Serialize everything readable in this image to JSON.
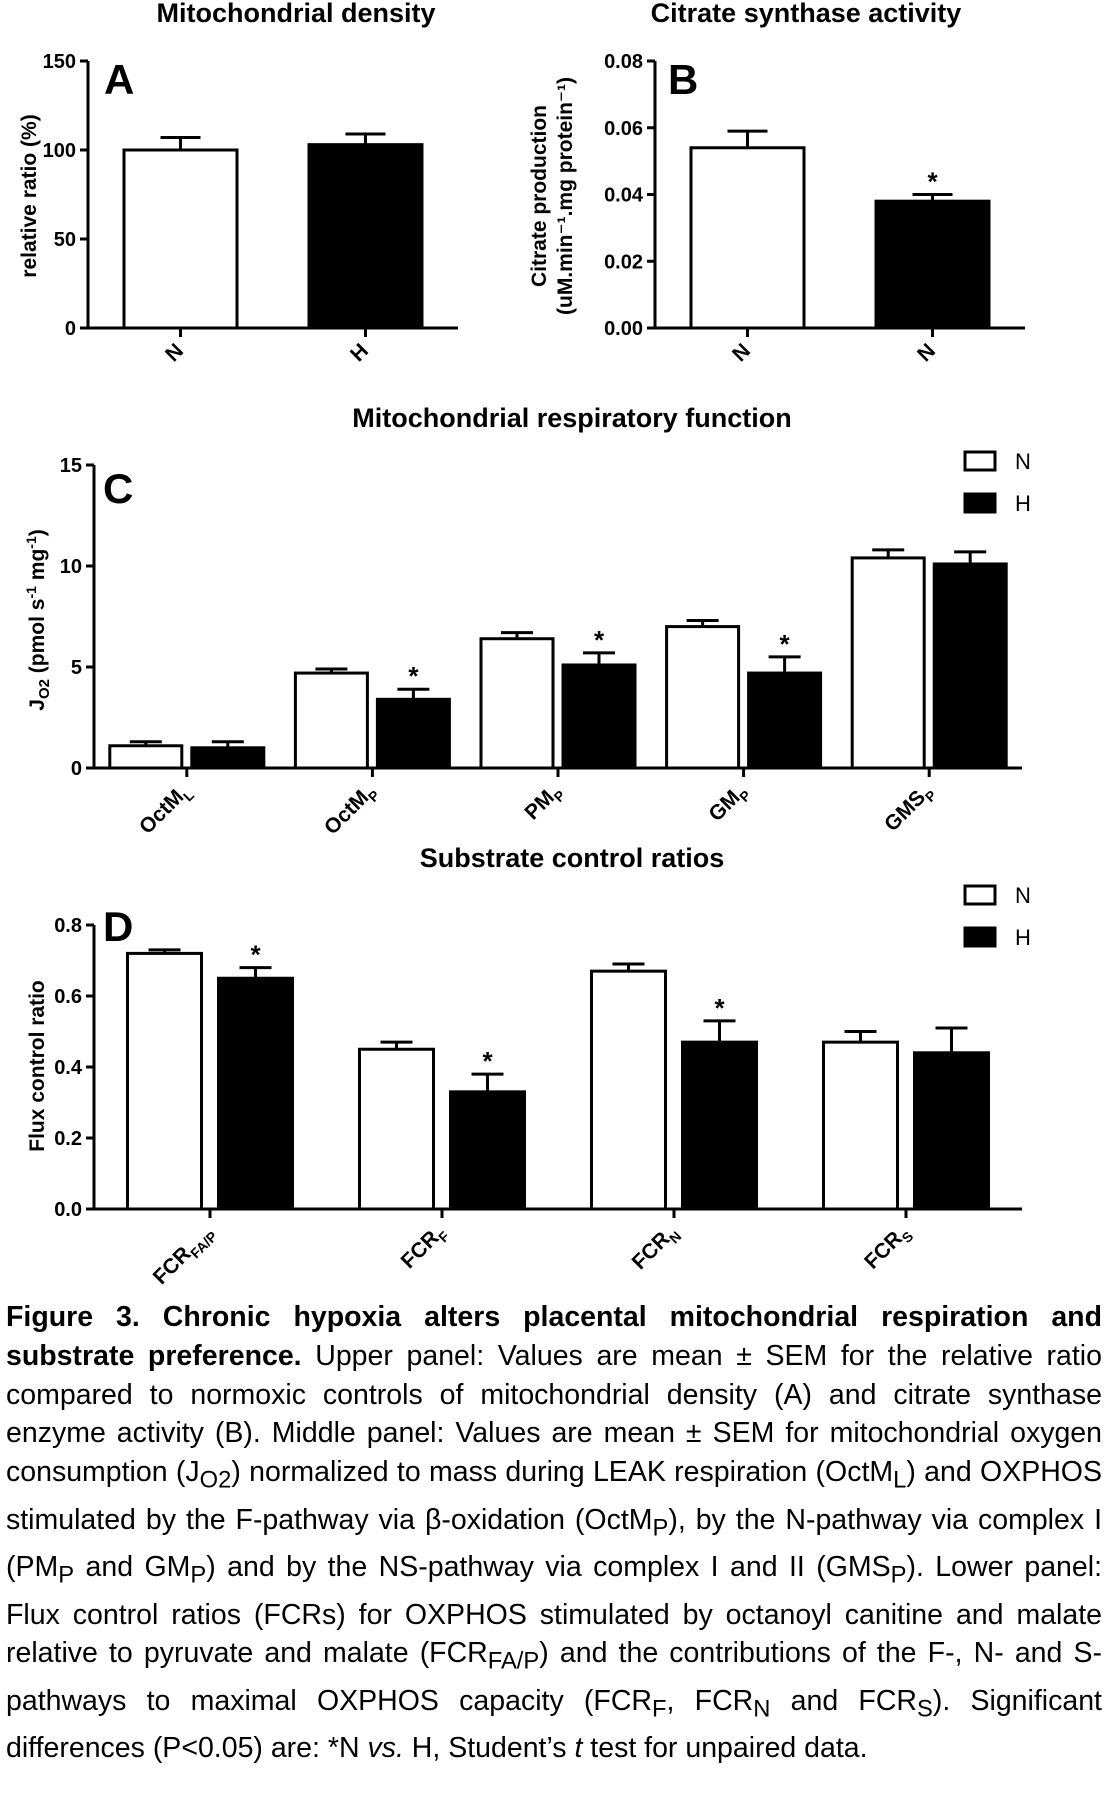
{
  "chart_data": [
    {
      "id": "A",
      "type": "bar",
      "title": "Mitochondrial density",
      "panel_label": "A",
      "ylabel": "relative ratio (%)",
      "ylim": [
        0,
        150
      ],
      "yticks": [
        0,
        50,
        100,
        150
      ],
      "categories": [
        "N",
        "H"
      ],
      "values": [
        100,
        103
      ],
      "errors": [
        7,
        6
      ],
      "fills": [
        "#ffffff",
        "#000000"
      ],
      "stars": [
        "",
        ""
      ]
    },
    {
      "id": "B",
      "type": "bar",
      "title": "Citrate synthase activity",
      "panel_label": "B",
      "ylabel": "Citrate production",
      "ylabel2": "(uM.min⁻¹.mg protein⁻¹)",
      "ylim": [
        0,
        0.08
      ],
      "yticks": [
        "0.00",
        "0.02",
        "0.04",
        "0.06",
        "0.08"
      ],
      "categories": [
        "N",
        "N"
      ],
      "values": [
        0.054,
        0.038
      ],
      "errors": [
        0.005,
        0.002
      ],
      "fills": [
        "#ffffff",
        "#000000"
      ],
      "stars": [
        "",
        "*"
      ]
    },
    {
      "id": "C",
      "type": "bar",
      "title": "Mitochondrial respiratory function",
      "panel_label": "C",
      "ylabel": "J",
      "ylabel_sub": "O2",
      "ylabel_rest": " (pmol s",
      "ylabel_sup": "-1",
      "ylabel_rest2": " mg",
      "ylabel_sup2": "-1",
      "ylabel_end": ")",
      "ylim": [
        0,
        15
      ],
      "yticks": [
        0,
        5,
        10,
        15
      ],
      "categories": [
        {
          "main": "OctM",
          "sub": "L"
        },
        {
          "main": "OctM",
          "sub": "P"
        },
        {
          "main": "PM",
          "sub": "P"
        },
        {
          "main": "GM",
          "sub": "P"
        },
        {
          "main": "GMS",
          "sub": "P"
        }
      ],
      "series": [
        {
          "name": "N",
          "fill": "#ffffff",
          "values": [
            1.1,
            4.7,
            6.4,
            7.0,
            10.4
          ],
          "errors": [
            0.2,
            0.2,
            0.3,
            0.3,
            0.4
          ],
          "stars": [
            "",
            "",
            "",
            "",
            ""
          ]
        },
        {
          "name": "H",
          "fill": "#000000",
          "values": [
            1.0,
            3.4,
            5.1,
            4.7,
            10.1
          ],
          "errors": [
            0.3,
            0.5,
            0.6,
            0.8,
            0.6
          ],
          "stars": [
            "",
            "*",
            "*",
            "*",
            ""
          ]
        }
      ]
    },
    {
      "id": "D",
      "type": "bar",
      "title": "Substrate control ratios",
      "panel_label": "D",
      "ylabel": "Flux control ratio",
      "ylim": [
        0,
        0.8
      ],
      "yticks": [
        "0.0",
        "0.2",
        "0.4",
        "0.6",
        "0.8"
      ],
      "categories": [
        {
          "main": "FCR",
          "sub": "FA/P"
        },
        {
          "main": "FCR",
          "sub": "F"
        },
        {
          "main": "FCR",
          "sub": "N"
        },
        {
          "main": "FCR",
          "sub": "S"
        }
      ],
      "series": [
        {
          "name": "N",
          "fill": "#ffffff",
          "values": [
            0.72,
            0.45,
            0.67,
            0.47
          ],
          "errors": [
            0.01,
            0.02,
            0.02,
            0.03
          ],
          "stars": [
            "",
            "",
            "",
            ""
          ]
        },
        {
          "name": "H",
          "fill": "#000000",
          "values": [
            0.65,
            0.33,
            0.47,
            0.44
          ],
          "errors": [
            0.03,
            0.05,
            0.06,
            0.07
          ],
          "stars": [
            "*",
            "*",
            "*",
            ""
          ]
        }
      ]
    }
  ],
  "caption": {
    "title": "Figure 3. Chronic hypoxia alters placental mitochondrial respiration and substrate preference.",
    "upper": " Upper panel: Values are mean ± SEM for the relative ratio compared to normoxic controls of mitochondrial density (A) and citrate synthase enzyme activity (B). Middle panel: Values are mean ± SEM for mitochondrial oxygen consumption (",
    "jo2": "J",
    "jo2_sub": "O2",
    "m1": ") normalized to mass during LEAK respiration (OctM",
    "m1_sub": "L",
    "m2": ") and OXPHOS stimulated by the F-pathway via β-oxidation (OctM",
    "m2_sub": "P",
    "m3": "), by the N-pathway via complex I (PM",
    "m3_sub": "P",
    "m4": " and GM",
    "m4_sub": "P",
    "m5": ") and by the NS-pathway via complex I and II (GMS",
    "m5_sub": "P",
    "lower": "). Lower panel: Flux control ratios (FCRs) for OXPHOS stimulated by octanoyl canitine and malate relative to pyruvate and malate (FCR",
    "l1_sub": "FA/P",
    "l2": ") and the contributions of the F-, N- and S-pathways to maximal OXPHOS capacity (FCR",
    "l2_sub": "F",
    "l3": ", FCR",
    "l3_sub": "N",
    "l4": " and FCR",
    "l4_sub": "S",
    "l5": "). Significant differences (P<0.05) are: *N ",
    "vs": "vs.",
    "l6": " H, Student’s ",
    "t": "t",
    "l7": " test for unpaired data."
  }
}
